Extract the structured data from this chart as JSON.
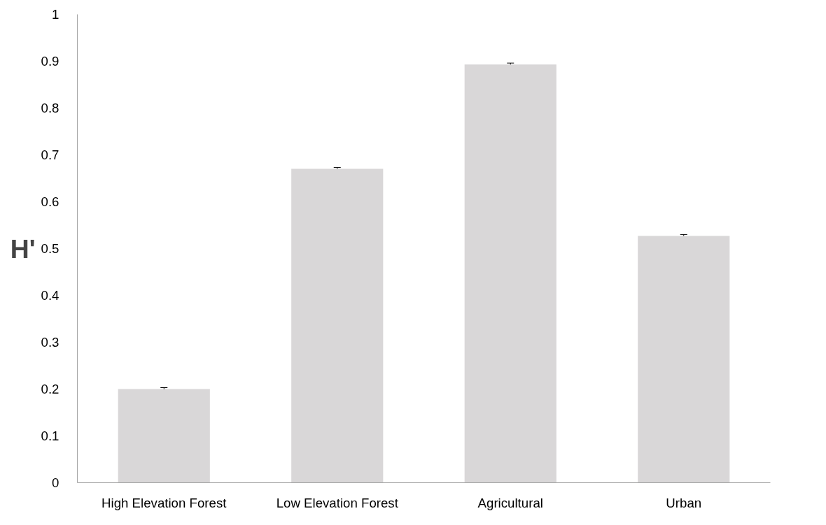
{
  "chart_data": {
    "type": "bar",
    "ylabel": "H'",
    "categories": [
      "High Elevation Forest",
      "Low Elevation Forest",
      "Agricultural",
      "Urban"
    ],
    "values": [
      0.2,
      0.67,
      0.893,
      0.527
    ],
    "errors": [
      0.003,
      0.003,
      0.003,
      0.003
    ],
    "color": "#d9d7d8",
    "ylim": [
      0,
      1
    ],
    "yticks": [
      0,
      0.1,
      0.2,
      0.3,
      0.4,
      0.5,
      0.6,
      0.7,
      0.8,
      0.9,
      1
    ],
    "grid": false
  }
}
